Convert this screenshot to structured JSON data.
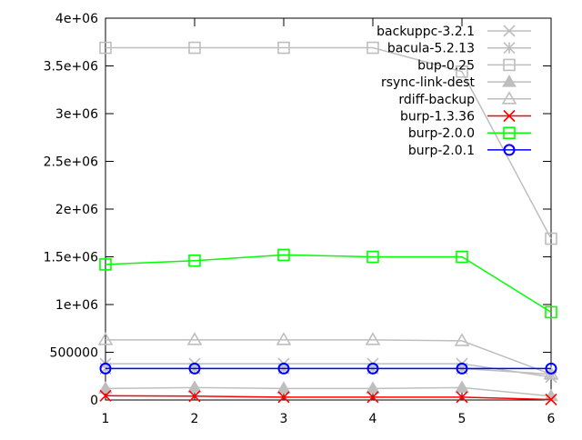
{
  "chart_data": {
    "type": "line",
    "title": "",
    "xlabel": "",
    "ylabel": "",
    "x": [
      1,
      2,
      3,
      4,
      5,
      6
    ],
    "xlim": [
      1,
      6
    ],
    "ylim": [
      0,
      4000000
    ],
    "x_ticks": [
      "1",
      "2",
      "3",
      "4",
      "5",
      "6"
    ],
    "y_ticks": [
      {
        "value": 0,
        "label": "0"
      },
      {
        "value": 500000,
        "label": "500000"
      },
      {
        "value": 1000000,
        "label": "1e+06"
      },
      {
        "value": 1500000,
        "label": "1.5e+06"
      },
      {
        "value": 2000000,
        "label": "2e+06"
      },
      {
        "value": 2500000,
        "label": "2.5e+06"
      },
      {
        "value": 3000000,
        "label": "3e+06"
      },
      {
        "value": 3500000,
        "label": "3.5e+06"
      },
      {
        "value": 4000000,
        "label": "4e+06"
      }
    ],
    "grid": false,
    "legend_position": "top-right",
    "series": [
      {
        "name": "backuppc-3.2.1",
        "marker": "x",
        "color": "#bebebe",
        "values": [
          380000,
          380000,
          380000,
          380000,
          380000,
          240000
        ]
      },
      {
        "name": "bacula-5.2.13",
        "marker": "star",
        "color": "#bebebe",
        "values": [
          330000,
          330000,
          330000,
          330000,
          330000,
          270000
        ]
      },
      {
        "name": "bup-0.25",
        "marker": "square",
        "color": "#bebebe",
        "values": [
          3690000,
          3690000,
          3690000,
          3690000,
          3440000,
          1690000
        ]
      },
      {
        "name": "rsync-link-dest",
        "marker": "filled-triangle",
        "color": "#bebebe",
        "values": [
          120000,
          130000,
          120000,
          120000,
          130000,
          40000
        ]
      },
      {
        "name": "rdiff-backup",
        "marker": "triangle",
        "color": "#bebebe",
        "values": [
          630000,
          630000,
          630000,
          630000,
          620000,
          270000
        ]
      },
      {
        "name": "burp-1.3.36",
        "marker": "x",
        "color": "#ff0000",
        "values": [
          45000,
          40000,
          30000,
          30000,
          30000,
          5000
        ]
      },
      {
        "name": "burp-2.0.0",
        "marker": "square",
        "color": "#00ff00",
        "values": [
          1420000,
          1460000,
          1520000,
          1500000,
          1500000,
          920000
        ]
      },
      {
        "name": "burp-2.0.1",
        "marker": "circle",
        "color": "#0000ff",
        "values": [
          330000,
          330000,
          330000,
          330000,
          330000,
          330000
        ]
      }
    ]
  }
}
